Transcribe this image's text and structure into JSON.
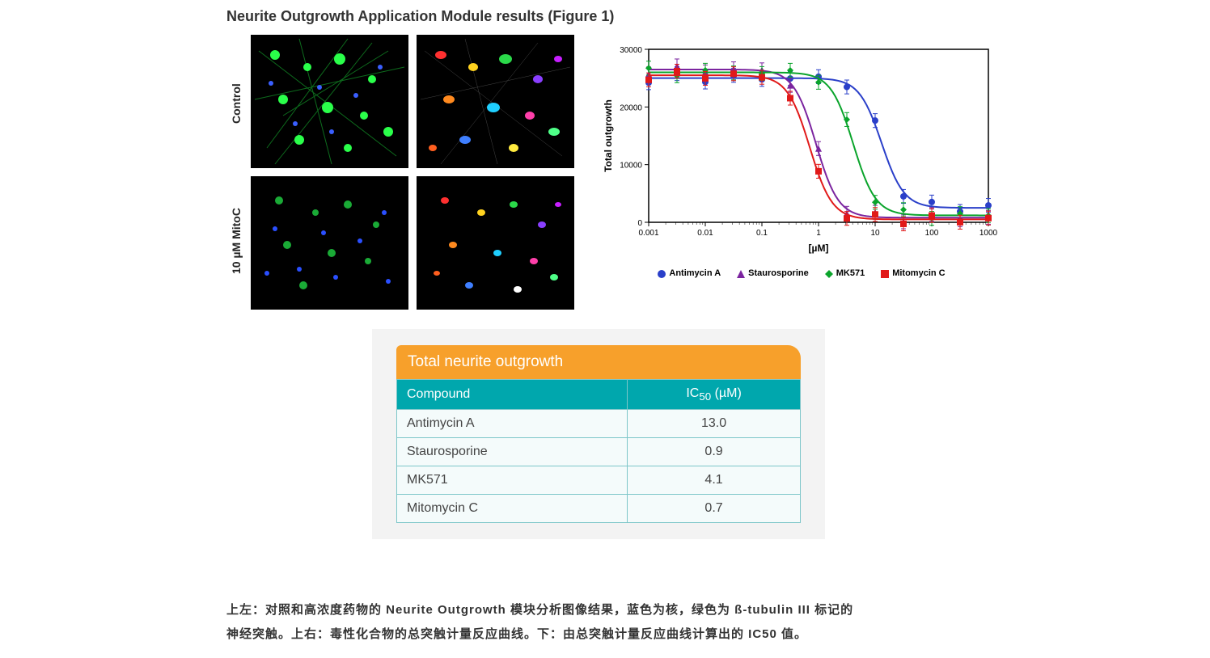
{
  "figure": {
    "title": "Neurite Outgrowth Application Module results (Figure 1)",
    "row_labels": [
      "Control",
      "10 µM MitoC"
    ],
    "micrograph_panels": {
      "rows": 2,
      "cols": 2,
      "left_col_desc": "fluorescence-green-blue",
      "right_col_desc": "segmentation-multicolor"
    }
  },
  "chart": {
    "type": "dose-response-sigmoid",
    "ylabel": "Total outgrowth",
    "xlabel": "[µM]",
    "ylim": [
      0,
      30000
    ],
    "ytick_step": 10000,
    "xscale": "log",
    "xticks": [
      0.001,
      0.01,
      0.1,
      1,
      10,
      100,
      1000
    ],
    "background_color": "#ffffff",
    "frame_color": "#000000",
    "series": [
      {
        "name": "Antimycin A",
        "color": "#2a3fc9",
        "marker": "circle",
        "ic50": 13.0,
        "top": 25000,
        "bottom": 2500
      },
      {
        "name": "Staurosporine",
        "color": "#7b249f",
        "marker": "triangle",
        "ic50": 0.9,
        "top": 26500,
        "bottom": 800
      },
      {
        "name": "MK571",
        "color": "#0aa42b",
        "marker": "diamond",
        "ic50": 4.1,
        "top": 26000,
        "bottom": 1200
      },
      {
        "name": "Mitomycin C",
        "color": "#e11919",
        "marker": "square",
        "ic50": 0.7,
        "top": 25500,
        "bottom": 500
      }
    ],
    "axis_fontsize": 12,
    "tick_fontsize": 10
  },
  "table": {
    "title": "Total neurite outgrowth",
    "columns": [
      "Compound",
      "IC₅₀ (µM)"
    ],
    "rows": [
      [
        "Antimycin A",
        "13.0"
      ],
      [
        "Staurosporine",
        "0.9"
      ],
      [
        "MK571",
        "4.1"
      ],
      [
        "Mitomycin C",
        "0.7"
      ]
    ],
    "title_bg": "#f7a02b",
    "header_bg": "#00a7ad",
    "cell_bg": "#f4fbfb",
    "border_color": "#7dc6c9"
  },
  "caption": {
    "line1": "上左：对照和高浓度药物的 Neurite Outgrowth 模块分析图像结果，蓝色为核，绿色为 ß-tubulin III 标记的",
    "line2": "神经突触。上右：毒性化合物的总突触计量反应曲线。下：由总突触计量反应曲线计算出的 IC50 值。"
  }
}
